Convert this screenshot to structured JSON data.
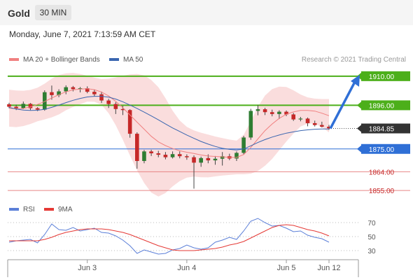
{
  "header": {
    "instrument": "Gold",
    "timeframe": "30 MIN"
  },
  "datetime": "Monday, June 7, 2021 7:13:59 AM CET",
  "credit": "Research © 2021 Trading Central",
  "colors": {
    "up": "#2e7d32",
    "down": "#c62828",
    "resistance": "#4caf1a",
    "support": "#2f6fd6",
    "target": "#e57373",
    "last": "#333333",
    "arrow": "#2f6fd6",
    "bb": "#f7c7c7",
    "ma20": "#f08080",
    "ma50": "#3a66b0",
    "rsi": "#5b7fd8",
    "rsi_ma": "#e53935"
  },
  "chart_data": [
    {
      "type": "line",
      "title": "",
      "series": [
        {
          "name": "MA 20 + Bollinger Bands",
          "values": [
            1894.6,
            1894.3,
            1894.5,
            1895.2,
            1896.4,
            1897.8,
            1899.5,
            1901.1,
            1902.5,
            1903.4,
            1903.8,
            1904.0,
            1903.5,
            1902.4,
            1900.5,
            1897.9,
            1894.8,
            1891.4,
            1887.9,
            1884.5,
            1881.1,
            1878.4,
            1876.6,
            1875.2,
            1874.1,
            1873.4,
            1872.8,
            1872.1,
            1871.6,
            1871.4,
            1871.2,
            1871.0,
            1870.9,
            1872.3,
            1875.7,
            1879.8,
            1883.8,
            1887.0,
            1889.7,
            1891.7,
            1892.8,
            1893.5,
            1893.5,
            1893.2,
            1892.2,
            1891.0
          ]
        },
        {
          "name": "MA 50",
          "values": [
            1895.0,
            1894.2,
            1893.7,
            1893.5,
            1893.6,
            1894.1,
            1895.0,
            1896.1,
            1897.3,
            1898.4,
            1899.3,
            1900.0,
            1900.3,
            1900.3,
            1899.9,
            1899.0,
            1897.7,
            1896.1,
            1894.5,
            1892.7,
            1890.9,
            1889.0,
            1887.0,
            1885.1,
            1883.4,
            1881.7,
            1880.1,
            1878.6,
            1877.3,
            1876.2,
            1875.3,
            1874.8,
            1874.5,
            1875.0,
            1876.5,
            1878.1,
            1879.5,
            1880.7,
            1881.7,
            1882.6,
            1883.2,
            1883.8,
            1884.2,
            1884.5,
            1884.6,
            1884.6
          ]
        }
      ],
      "candles": [
        [
          1896.5,
          1897.2,
          1894.6,
          1895.3
        ],
        [
          1895.3,
          1896.3,
          1893.7,
          1894.6
        ],
        [
          1894.6,
          1897.8,
          1894.2,
          1896.7
        ],
        [
          1896.7,
          1897.1,
          1893.7,
          1894.6
        ],
        [
          1894.6,
          1895.1,
          1893.2,
          1893.9
        ],
        [
          1893.9,
          1903.2,
          1893.4,
          1902.3
        ],
        [
          1902.3,
          1905.5,
          1898.7,
          1900.9
        ],
        [
          1900.9,
          1903.7,
          1899.9,
          1902.7
        ],
        [
          1902.7,
          1905.6,
          1901.3,
          1904.7
        ],
        [
          1904.7,
          1905.3,
          1902.7,
          1903.8
        ],
        [
          1903.8,
          1904.8,
          1902.2,
          1904.2
        ],
        [
          1904.2,
          1905.1,
          1901.8,
          1902.5
        ],
        [
          1902.5,
          1903.4,
          1900.3,
          1901.3
        ],
        [
          1901.3,
          1902.6,
          1897.1,
          1898.3
        ],
        [
          1898.3,
          1899.1,
          1894.7,
          1896.6
        ],
        [
          1896.6,
          1897.5,
          1891.8,
          1894.2
        ],
        [
          1894.2,
          1895.7,
          1891.3,
          1893.7
        ],
        [
          1893.7,
          1894.1,
          1880.4,
          1882.3
        ],
        [
          1882.3,
          1883.0,
          1865.5,
          1869.2
        ],
        [
          1869.2,
          1874.5,
          1868.1,
          1873.8
        ],
        [
          1873.8,
          1874.6,
          1871.6,
          1872.9
        ],
        [
          1872.9,
          1874.1,
          1871.0,
          1872.2
        ],
        [
          1872.2,
          1873.5,
          1870.0,
          1871.0
        ],
        [
          1871.0,
          1873.8,
          1870.4,
          1872.5
        ],
        [
          1872.5,
          1873.8,
          1870.5,
          1871.5
        ],
        [
          1871.5,
          1872.4,
          1869.8,
          1871.0
        ],
        [
          1871.0,
          1871.9,
          1855.9,
          1868.4
        ],
        [
          1868.4,
          1871.3,
          1866.4,
          1870.6
        ],
        [
          1870.6,
          1872.4,
          1868.1,
          1869.5
        ],
        [
          1869.5,
          1871.6,
          1867.4,
          1870.3
        ],
        [
          1870.3,
          1873.5,
          1867.0,
          1871.5
        ],
        [
          1871.5,
          1872.7,
          1869.6,
          1870.4
        ],
        [
          1870.4,
          1873.8,
          1869.2,
          1873.1
        ],
        [
          1873.1,
          1881.3,
          1872.3,
          1880.5
        ],
        [
          1880.5,
          1894.3,
          1879.4,
          1893.3
        ],
        [
          1893.3,
          1896.1,
          1891.2,
          1894.1
        ],
        [
          1894.1,
          1894.8,
          1891.3,
          1892.7
        ],
        [
          1892.7,
          1893.9,
          1890.7,
          1891.8
        ],
        [
          1891.8,
          1893.6,
          1889.4,
          1892.9
        ],
        [
          1892.9,
          1893.5,
          1890.8,
          1891.6
        ],
        [
          1891.6,
          1892.3,
          1888.5,
          1889.2
        ],
        [
          1889.2,
          1890.4,
          1888.3,
          1889.6
        ],
        [
          1889.6,
          1890.1,
          1885.9,
          1887.4
        ],
        [
          1887.4,
          1888.6,
          1885.8,
          1886.5
        ],
        [
          1886.5,
          1888.1,
          1885.3,
          1885.7
        ],
        [
          1885.7,
          1886.6,
          1884.2,
          1884.9
        ]
      ],
      "bollinger": {
        "upper": [
          1903.5,
          1903.1,
          1903.0,
          1903.4,
          1904.5,
          1906.4,
          1908.8,
          1910.6,
          1911.4,
          1911.6,
          1911.1,
          1910.2,
          1909.3,
          1908.6,
          1908.8,
          1909.4,
          1910.2,
          1910.9,
          1911.1,
          1910.4,
          1908.2,
          1904.7,
          1899.4,
          1893.4,
          1888.7,
          1885.6,
          1883.9,
          1882.8,
          1881.9,
          1881.0,
          1880.2,
          1879.5,
          1879.0,
          1881.8,
          1888.3,
          1895.2,
          1900.7,
          1903.8,
          1905.0,
          1904.8,
          1903.2,
          1901.2,
          1899.8,
          1899.2,
          1899.0,
          1899.0
        ],
        "lower": [
          1885.7,
          1885.5,
          1886.0,
          1887.0,
          1888.3,
          1889.2,
          1890.2,
          1891.6,
          1893.6,
          1895.2,
          1896.5,
          1897.8,
          1897.7,
          1896.2,
          1892.2,
          1886.4,
          1879.4,
          1871.9,
          1864.7,
          1858.6,
          1854.0,
          1852.1,
          1853.8,
          1857.0,
          1859.5,
          1861.2,
          1861.7,
          1861.4,
          1861.3,
          1861.8,
          1862.2,
          1862.5,
          1862.8,
          1862.8,
          1863.1,
          1864.4,
          1866.9,
          1870.2,
          1874.4,
          1878.6,
          1882.4,
          1885.8,
          1887.2,
          1887.2,
          1885.4,
          1883.0
        ]
      },
      "ylim": [
        1850.0,
        1915.0
      ],
      "xticks": [
        "Jun 3",
        "Jun 4",
        "Jun 5",
        "Jun 12"
      ],
      "levels": [
        {
          "label": "1910.00",
          "value": 1910.0,
          "kind": "resistance"
        },
        {
          "label": "1896.00",
          "value": 1896.0,
          "kind": "resistance"
        },
        {
          "label": "1884.85",
          "value": 1884.85,
          "kind": "last"
        },
        {
          "label": "1875.00",
          "value": 1875.0,
          "kind": "support"
        },
        {
          "label": "1864.00",
          "value": 1864.0,
          "kind": "target"
        },
        {
          "label": "1855.00",
          "value": 1855.0,
          "kind": "target"
        }
      ],
      "arrow": {
        "from": 1884.85,
        "to": 1910.0
      },
      "legend": "top-left",
      "grid": false
    },
    {
      "type": "line",
      "title": "",
      "series": [
        {
          "name": "RSI",
          "values": [
            42,
            44,
            45,
            46,
            41,
            53,
            68,
            60,
            59,
            63,
            58,
            60,
            62,
            56,
            55,
            51,
            45,
            37,
            26,
            31,
            28,
            25,
            26,
            31,
            33,
            38,
            34,
            32,
            34,
            42,
            45,
            49,
            46,
            58,
            72,
            76,
            70,
            65,
            66,
            62,
            57,
            58,
            52,
            49,
            47,
            42
          ]
        },
        {
          "name": "9MA",
          "values": [
            44,
            44,
            44,
            44,
            44,
            46,
            49,
            53,
            56,
            58,
            60,
            61,
            61,
            61,
            60,
            58,
            56,
            53,
            49,
            45,
            41,
            37,
            34,
            31,
            30,
            30,
            30,
            31,
            32,
            33,
            35,
            38,
            40,
            43,
            48,
            53,
            58,
            63,
            66,
            67,
            66,
            63,
            60,
            58,
            55,
            51
          ]
        }
      ],
      "ylim": [
        20,
        78
      ],
      "yticks": [
        70,
        50,
        30
      ],
      "legend": "top-left",
      "grid": true
    }
  ]
}
